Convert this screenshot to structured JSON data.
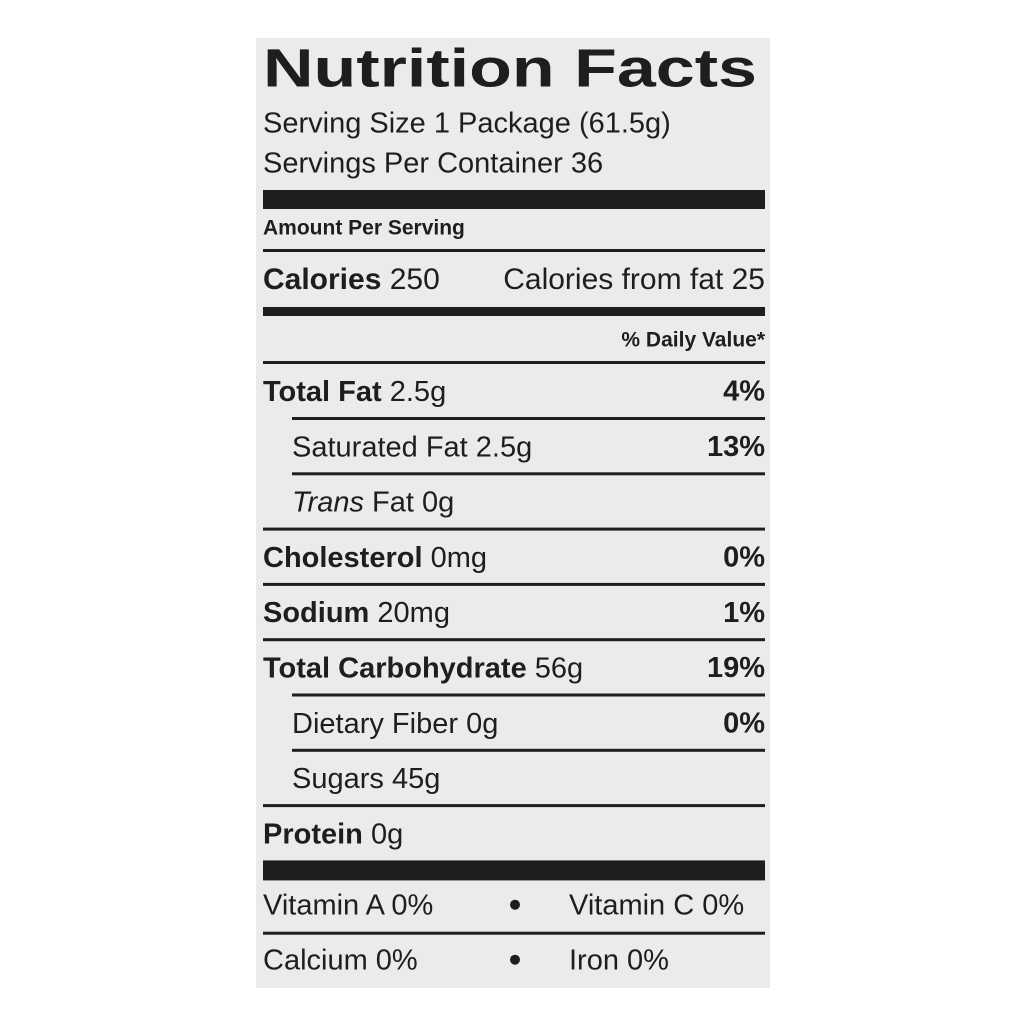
{
  "title": "Nutrition Facts",
  "serving_size": "Serving Size 1 Package (61.5g)",
  "servings_per_container": "Servings Per Container 36",
  "amount_per_serving": "Amount Per Serving",
  "calories": {
    "label": "Calories",
    "value": "250",
    "from_fat": "Calories from fat 25"
  },
  "daily_value_header": "% Daily Value*",
  "nutrients": [
    {
      "name": "Total Fat",
      "amount": "2.5g",
      "dv": "4%",
      "sub": false
    },
    {
      "name": "Saturated Fat",
      "amount": "2.5g",
      "dv": "13%",
      "sub": true
    },
    {
      "italic_prefix": "Trans",
      "name": "Fat",
      "amount": "0g",
      "sub": true
    },
    {
      "name": "Cholesterol",
      "amount": "0mg",
      "dv": "0%",
      "sub": false
    },
    {
      "name": "Sodium",
      "amount": "20mg",
      "dv": "1%",
      "sub": false
    },
    {
      "name": "Total Carbohydrate",
      "amount": "56g",
      "dv": "19%",
      "sub": false
    },
    {
      "name": "Dietary Fiber",
      "amount": "0g",
      "dv": "0%",
      "sub": true
    },
    {
      "name": "Sugars",
      "amount": "45g",
      "sub": true
    },
    {
      "name": "Protein",
      "amount": "0g",
      "sub": false
    }
  ],
  "vitamins": [
    [
      "Vitamin A 0%",
      "Vitamin C 0%"
    ],
    [
      "Calcium 0%",
      "Iron 0%"
    ]
  ]
}
